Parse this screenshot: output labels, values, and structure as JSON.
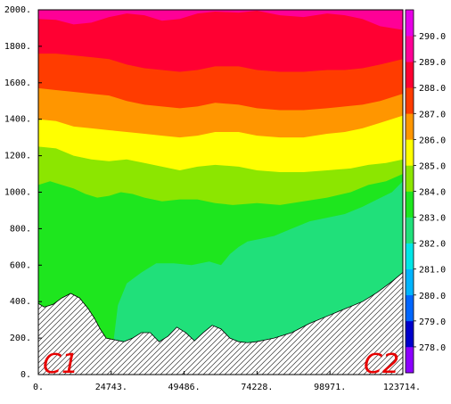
{
  "chart_data": {
    "type": "heatmap",
    "title": "",
    "xlabel": "",
    "ylabel": "",
    "xlim": [
      0,
      123714
    ],
    "ylim": [
      0,
      2000
    ],
    "x_tick_labels": [
      "0.",
      "24743.",
      "49486.",
      "74228.",
      "98971.",
      "123714."
    ],
    "x_tick_values": [
      0,
      24743,
      49486,
      74228,
      98971,
      123714
    ],
    "y_tick_labels": [
      "0.",
      "200.",
      "400.",
      "600.",
      "800.",
      "1000.",
      "1200.",
      "1400.",
      "1600.",
      "1800.",
      "2000."
    ],
    "y_tick_values": [
      0,
      200,
      400,
      600,
      800,
      1000,
      1200,
      1400,
      1600,
      1800,
      2000
    ],
    "colorbar": {
      "levels": [
        277,
        278,
        279,
        280,
        281,
        282,
        283,
        284,
        285,
        286,
        287,
        288,
        289,
        290,
        291
      ],
      "labels": [
        "278.0",
        "279.0",
        "280.0",
        "281.0",
        "282.0",
        "283.0",
        "284.0",
        "285.0",
        "286.0",
        "287.0",
        "288.0",
        "289.0",
        "290.0"
      ],
      "colors": [
        "#8c00ff",
        "#0000cc",
        "#0066ff",
        "#00b4ff",
        "#00e6e6",
        "#20e07a",
        "#1ee61e",
        "#8ce600",
        "#ffff00",
        "#ff9600",
        "#ff3c00",
        "#ff0032",
        "#ff0096",
        "#e600e6"
      ]
    },
    "terrain": {
      "x": [
        0,
        2000,
        5000,
        8000,
        11000,
        14000,
        17000,
        19000,
        21000,
        23000,
        26000,
        29000,
        32000,
        35000,
        38000,
        41000,
        44000,
        47000,
        50000,
        53000,
        56000,
        59000,
        62000,
        65000,
        68000,
        71000,
        74000,
        80000,
        86000,
        92000,
        98000,
        104000,
        110000,
        115000,
        120000,
        123714
      ],
      "y": [
        390,
        370,
        385,
        420,
        445,
        420,
        360,
        310,
        250,
        200,
        190,
        180,
        200,
        230,
        230,
        180,
        210,
        260,
        230,
        185,
        230,
        270,
        250,
        200,
        180,
        175,
        180,
        200,
        230,
        280,
        320,
        360,
        400,
        450,
        510,
        560
      ]
    },
    "contours": [
      {
        "value": 283,
        "x": [
          25500,
          27000,
          30000,
          35000,
          40000,
          46000,
          52000,
          58000,
          62000,
          65000,
          68000,
          71000,
          74228,
          80000,
          86000,
          92000,
          98000,
          104000,
          110000,
          115000,
          120000,
          123714
        ],
        "y": [
          180,
          380,
          500,
          560,
          610,
          610,
          600,
          620,
          600,
          660,
          700,
          730,
          740,
          760,
          800,
          840,
          860,
          880,
          920,
          960,
          1000,
          1060
        ]
      },
      {
        "value": 284,
        "x": [
          0,
          4000,
          8000,
          12000,
          16000,
          20000,
          24000,
          28000,
          32000,
          36000,
          42000,
          48000,
          54000,
          60000,
          66000,
          74228,
          82000,
          90000,
          98000,
          106000,
          112000,
          118000,
          123714
        ],
        "y": [
          1040,
          1060,
          1040,
          1020,
          990,
          970,
          980,
          1000,
          990,
          970,
          950,
          960,
          960,
          940,
          930,
          940,
          930,
          950,
          970,
          1000,
          1040,
          1060,
          1100
        ]
      },
      {
        "value": 285,
        "x": [
          0,
          6000,
          12000,
          18000,
          24000,
          30000,
          36000,
          42000,
          48000,
          54000,
          60000,
          68000,
          74228,
          82000,
          90000,
          98000,
          106000,
          112000,
          118000,
          123714
        ],
        "y": [
          1250,
          1240,
          1200,
          1180,
          1170,
          1180,
          1160,
          1140,
          1120,
          1140,
          1150,
          1140,
          1120,
          1110,
          1110,
          1120,
          1130,
          1150,
          1160,
          1180
        ]
      },
      {
        "value": 286,
        "x": [
          0,
          6000,
          12000,
          18000,
          24000,
          30000,
          36000,
          42000,
          48000,
          54000,
          60000,
          68000,
          74228,
          82000,
          90000,
          98000,
          104000,
          110000,
          116000,
          123714
        ],
        "y": [
          1400,
          1390,
          1360,
          1350,
          1340,
          1330,
          1320,
          1310,
          1300,
          1310,
          1330,
          1330,
          1310,
          1300,
          1300,
          1320,
          1330,
          1350,
          1380,
          1420
        ]
      },
      {
        "value": 287,
        "x": [
          0,
          6000,
          12000,
          18000,
          24000,
          30000,
          36000,
          42000,
          48000,
          54000,
          60000,
          68000,
          74228,
          82000,
          90000,
          98000,
          104000,
          110000,
          116000,
          123714
        ],
        "y": [
          1570,
          1560,
          1550,
          1540,
          1530,
          1500,
          1480,
          1470,
          1460,
          1470,
          1490,
          1480,
          1460,
          1450,
          1450,
          1460,
          1470,
          1480,
          1500,
          1540
        ]
      },
      {
        "value": 288,
        "x": [
          0,
          6000,
          12000,
          18000,
          24000,
          30000,
          36000,
          42000,
          48000,
          54000,
          60000,
          68000,
          74228,
          82000,
          90000,
          98000,
          104000,
          110000,
          116000,
          123714
        ],
        "y": [
          1760,
          1760,
          1750,
          1740,
          1730,
          1700,
          1680,
          1670,
          1660,
          1670,
          1690,
          1690,
          1670,
          1660,
          1660,
          1670,
          1670,
          1680,
          1700,
          1730
        ]
      },
      {
        "value": 289,
        "x": [
          0,
          6000,
          12000,
          18000,
          24000,
          30000,
          36000,
          42000,
          48000,
          54000,
          60000,
          68000,
          74228,
          82000,
          90000,
          98000,
          104000,
          110000,
          116000,
          123714
        ],
        "y": [
          1950,
          1945,
          1920,
          1930,
          1960,
          1980,
          1970,
          1940,
          1950,
          1980,
          1990,
          1985,
          1995,
          1970,
          1960,
          1980,
          1970,
          1950,
          1910,
          1890
        ]
      }
    ],
    "annotations": [
      "C1",
      "C2"
    ]
  }
}
